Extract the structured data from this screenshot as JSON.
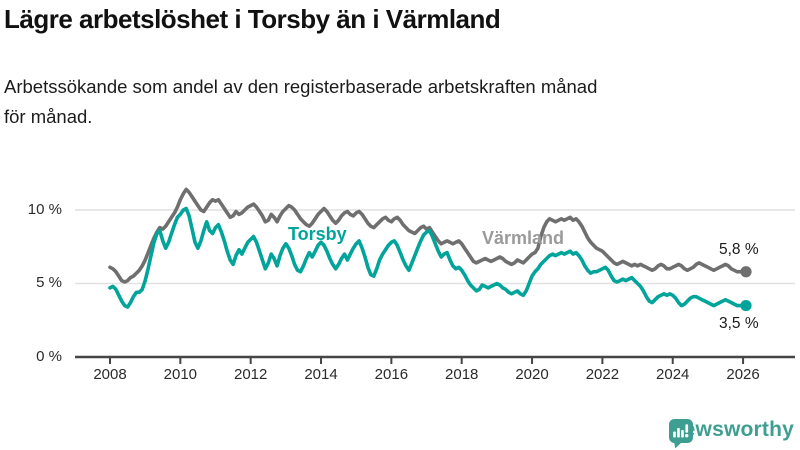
{
  "header": {
    "title": "Lägre arbetslöshet i Torsby än i Värmland",
    "subtitle_lines": [
      "Arbetssökande som andel av den registerbaserade arbetskraften månad",
      "för månad."
    ]
  },
  "chart_data": {
    "type": "line",
    "title": "Lägre arbetslöshet i Torsby än i Värmland",
    "subtitle": "Arbetssökande som andel av den registerbaserade arbetskraften månad för månad.",
    "x_unit": "month",
    "x_range": [
      "2008-01",
      "2026-02"
    ],
    "ylim": [
      0,
      11.8
    ],
    "grid_values": [
      5,
      10
    ],
    "legend_position": "inline-labels",
    "y_ticks": [
      {
        "value": 10,
        "label": "10 %"
      },
      {
        "value": 5,
        "label": "5 %"
      },
      {
        "value": 0,
        "label": "0 %"
      }
    ],
    "x_ticks": [
      {
        "year": 2008,
        "label": "2008"
      },
      {
        "year": 2010,
        "label": "2010"
      },
      {
        "year": 2012,
        "label": "2012"
      },
      {
        "year": 2014,
        "label": "2014"
      },
      {
        "year": 2016,
        "label": "2016"
      },
      {
        "year": 2018,
        "label": "2018"
      },
      {
        "year": 2020,
        "label": "2020"
      },
      {
        "year": 2022,
        "label": "2022"
      },
      {
        "year": 2024,
        "label": "2024"
      },
      {
        "year": 2026,
        "label": "2026"
      }
    ],
    "colors": {
      "torsby": "#00a49a",
      "varmland": "#6f6f6f",
      "varmland_label": "#9a9a9a",
      "grid": "#e1e1e1",
      "axis": "#454545"
    },
    "series": [
      {
        "name": "Värmland",
        "end_label": "5,8 %",
        "end_value": 5.8,
        "values": [
          6.1,
          6.0,
          5.8,
          5.5,
          5.2,
          5.1,
          5.2,
          5.4,
          5.5,
          5.7,
          5.9,
          6.2,
          6.6,
          7.1,
          7.6,
          8.1,
          8.5,
          8.8,
          8.7,
          8.9,
          9.2,
          9.5,
          9.8,
          10.2,
          10.7,
          11.1,
          11.4,
          11.2,
          10.9,
          10.6,
          10.3,
          10.0,
          9.9,
          10.2,
          10.5,
          10.7,
          10.6,
          10.7,
          10.4,
          10.1,
          9.8,
          9.5,
          9.6,
          9.9,
          9.7,
          9.8,
          10.0,
          10.2,
          10.3,
          10.4,
          10.2,
          9.9,
          9.6,
          9.2,
          9.3,
          9.7,
          9.5,
          9.2,
          9.6,
          9.9,
          10.1,
          10.3,
          10.2,
          10.0,
          9.7,
          9.4,
          9.2,
          9.0,
          8.9,
          9.1,
          9.4,
          9.7,
          9.9,
          10.1,
          9.9,
          9.6,
          9.3,
          9.1,
          9.3,
          9.6,
          9.8,
          9.9,
          9.7,
          9.6,
          9.8,
          9.9,
          9.7,
          9.4,
          9.1,
          8.9,
          8.8,
          9.0,
          9.2,
          9.4,
          9.5,
          9.3,
          9.2,
          9.4,
          9.5,
          9.3,
          9.0,
          8.8,
          8.6,
          8.5,
          8.4,
          8.6,
          8.8,
          8.9,
          8.7,
          8.8,
          8.5,
          8.2,
          7.9,
          7.7,
          7.8,
          7.9,
          7.8,
          7.7,
          7.8,
          7.9,
          7.7,
          7.4,
          7.1,
          6.8,
          6.5,
          6.4,
          6.5,
          6.6,
          6.7,
          6.6,
          6.5,
          6.6,
          6.7,
          6.8,
          6.7,
          6.5,
          6.4,
          6.3,
          6.4,
          6.6,
          6.5,
          6.4,
          6.6,
          6.8,
          7.0,
          7.1,
          7.4,
          8.2,
          8.8,
          9.2,
          9.4,
          9.3,
          9.2,
          9.3,
          9.4,
          9.3,
          9.4,
          9.5,
          9.3,
          9.4,
          9.2,
          8.9,
          8.5,
          8.1,
          7.8,
          7.6,
          7.4,
          7.3,
          7.2,
          7.0,
          6.8,
          6.6,
          6.4,
          6.3,
          6.4,
          6.5,
          6.4,
          6.3,
          6.2,
          6.3,
          6.2,
          6.3,
          6.2,
          6.1,
          6.0,
          5.9,
          6.0,
          6.2,
          6.3,
          6.2,
          6.0,
          6.0,
          6.1,
          6.2,
          6.3,
          6.2,
          6.0,
          5.9,
          6.0,
          6.1,
          6.3,
          6.4,
          6.3,
          6.2,
          6.1,
          6.0,
          5.9,
          6.0,
          6.1,
          6.2,
          6.3,
          6.2,
          6.0,
          5.9,
          5.8,
          5.8,
          5.8,
          5.8
        ]
      },
      {
        "name": "Torsby",
        "end_label": "3,5 %",
        "end_value": 3.5,
        "values": [
          4.7,
          4.8,
          4.6,
          4.2,
          3.8,
          3.5,
          3.4,
          3.7,
          4.1,
          4.4,
          4.4,
          4.6,
          5.2,
          6.0,
          6.9,
          7.8,
          8.4,
          8.6,
          7.9,
          7.4,
          7.8,
          8.4,
          9.0,
          9.5,
          9.7,
          10.0,
          10.1,
          9.6,
          8.7,
          7.8,
          7.4,
          7.9,
          8.6,
          9.2,
          8.6,
          8.4,
          8.8,
          9.0,
          8.5,
          7.9,
          7.2,
          6.6,
          6.3,
          6.9,
          7.3,
          7.0,
          7.4,
          7.8,
          8.0,
          8.2,
          7.8,
          7.2,
          6.6,
          6.0,
          6.4,
          7.0,
          6.7,
          6.2,
          6.9,
          7.4,
          7.7,
          7.4,
          6.9,
          6.3,
          5.9,
          5.8,
          6.2,
          6.7,
          7.1,
          6.8,
          7.2,
          7.6,
          7.8,
          7.6,
          7.2,
          6.7,
          6.3,
          6.0,
          6.3,
          6.7,
          7.0,
          6.6,
          7.0,
          7.4,
          7.7,
          7.9,
          7.4,
          6.8,
          6.1,
          5.6,
          5.5,
          6.0,
          6.6,
          7.0,
          7.3,
          7.6,
          7.8,
          7.9,
          7.6,
          7.1,
          6.6,
          6.2,
          5.9,
          6.4,
          6.9,
          7.4,
          7.9,
          8.3,
          8.5,
          8.6,
          8.2,
          7.7,
          7.2,
          6.8,
          7.0,
          7.1,
          6.6,
          6.2,
          6.0,
          6.1,
          5.9,
          5.6,
          5.2,
          4.9,
          4.7,
          4.5,
          4.6,
          4.9,
          4.8,
          4.7,
          4.8,
          4.9,
          5.0,
          4.9,
          4.7,
          4.6,
          4.4,
          4.3,
          4.4,
          4.5,
          4.3,
          4.2,
          4.5,
          5.0,
          5.5,
          5.8,
          6.0,
          6.3,
          6.5,
          6.7,
          6.9,
          7.0,
          6.9,
          7.0,
          7.1,
          7.0,
          7.1,
          7.2,
          7.0,
          7.1,
          6.9,
          6.6,
          6.2,
          5.9,
          5.7,
          5.8,
          5.8,
          5.9,
          6.0,
          6.1,
          5.9,
          5.5,
          5.2,
          5.1,
          5.2,
          5.3,
          5.2,
          5.3,
          5.4,
          5.2,
          5.0,
          4.8,
          4.5,
          4.1,
          3.8,
          3.7,
          3.9,
          4.1,
          4.2,
          4.3,
          4.2,
          4.3,
          4.2,
          4.0,
          3.7,
          3.5,
          3.6,
          3.8,
          4.0,
          4.1,
          4.1,
          4.0,
          3.9,
          3.8,
          3.7,
          3.6,
          3.5,
          3.6,
          3.7,
          3.8,
          3.9,
          3.8,
          3.7,
          3.6,
          3.5,
          3.5,
          3.5,
          3.5
        ]
      }
    ]
  },
  "footer": {
    "brand": "Newsworthy",
    "brand_color": "#3f9e92"
  }
}
